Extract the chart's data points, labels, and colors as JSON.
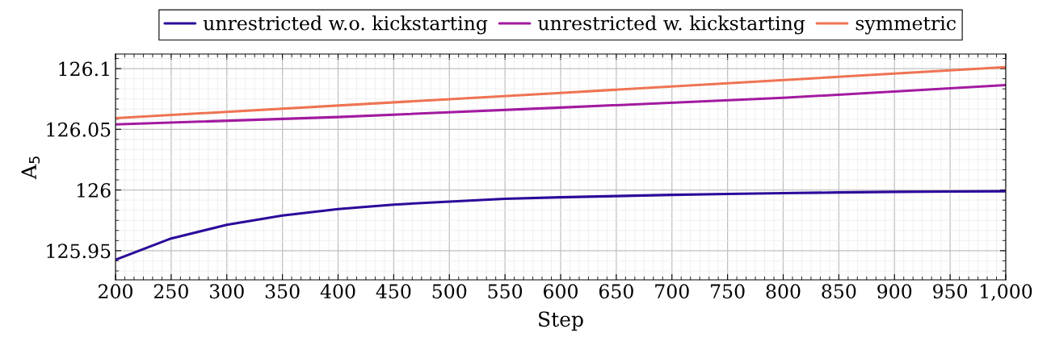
{
  "chart_data": {
    "type": "line",
    "xlabel": "Step",
    "ylabel": "A$_{5}$",
    "x": [
      200,
      250,
      300,
      350,
      400,
      450,
      500,
      550,
      600,
      650,
      700,
      750,
      800,
      850,
      900,
      950,
      1000
    ],
    "series": [
      {
        "name": "unrestricted w.o. kickstarting",
        "color": "#2c0a9a",
        "values": [
          125.9425,
          125.9601,
          125.9713,
          125.979,
          125.9843,
          125.988,
          125.9905,
          125.9927,
          125.994,
          125.995,
          125.996,
          125.9968,
          125.9974,
          125.998,
          125.9985,
          125.9988,
          125.999
        ]
      },
      {
        "name": "unrestricted w. kickstarting",
        "color": "#a21aa0",
        "x": [
          200,
          400,
          600,
          800,
          1000
        ],
        "values": [
          126.054,
          126.0601,
          126.0679,
          126.0759,
          126.0864
        ]
      },
      {
        "name": "symmetric",
        "color": "#ef7352",
        "x": [
          200,
          600,
          1000
        ],
        "values": [
          126.0592,
          126.08,
          126.1012
        ]
      }
    ],
    "xlim": [
      200,
      1000
    ],
    "xticks": [
      200,
      250,
      300,
      350,
      400,
      450,
      500,
      550,
      600,
      650,
      700,
      750,
      800,
      850,
      900,
      950,
      {
        "value": 1000,
        "label": "1,000"
      }
    ],
    "ylim": [
      125.926,
      126.112
    ],
    "yticks": [
      125.95,
      126,
      126.05,
      126.1
    ],
    "grid": true,
    "legend": "top",
    "marker": "none",
    "line_style": "solid"
  }
}
